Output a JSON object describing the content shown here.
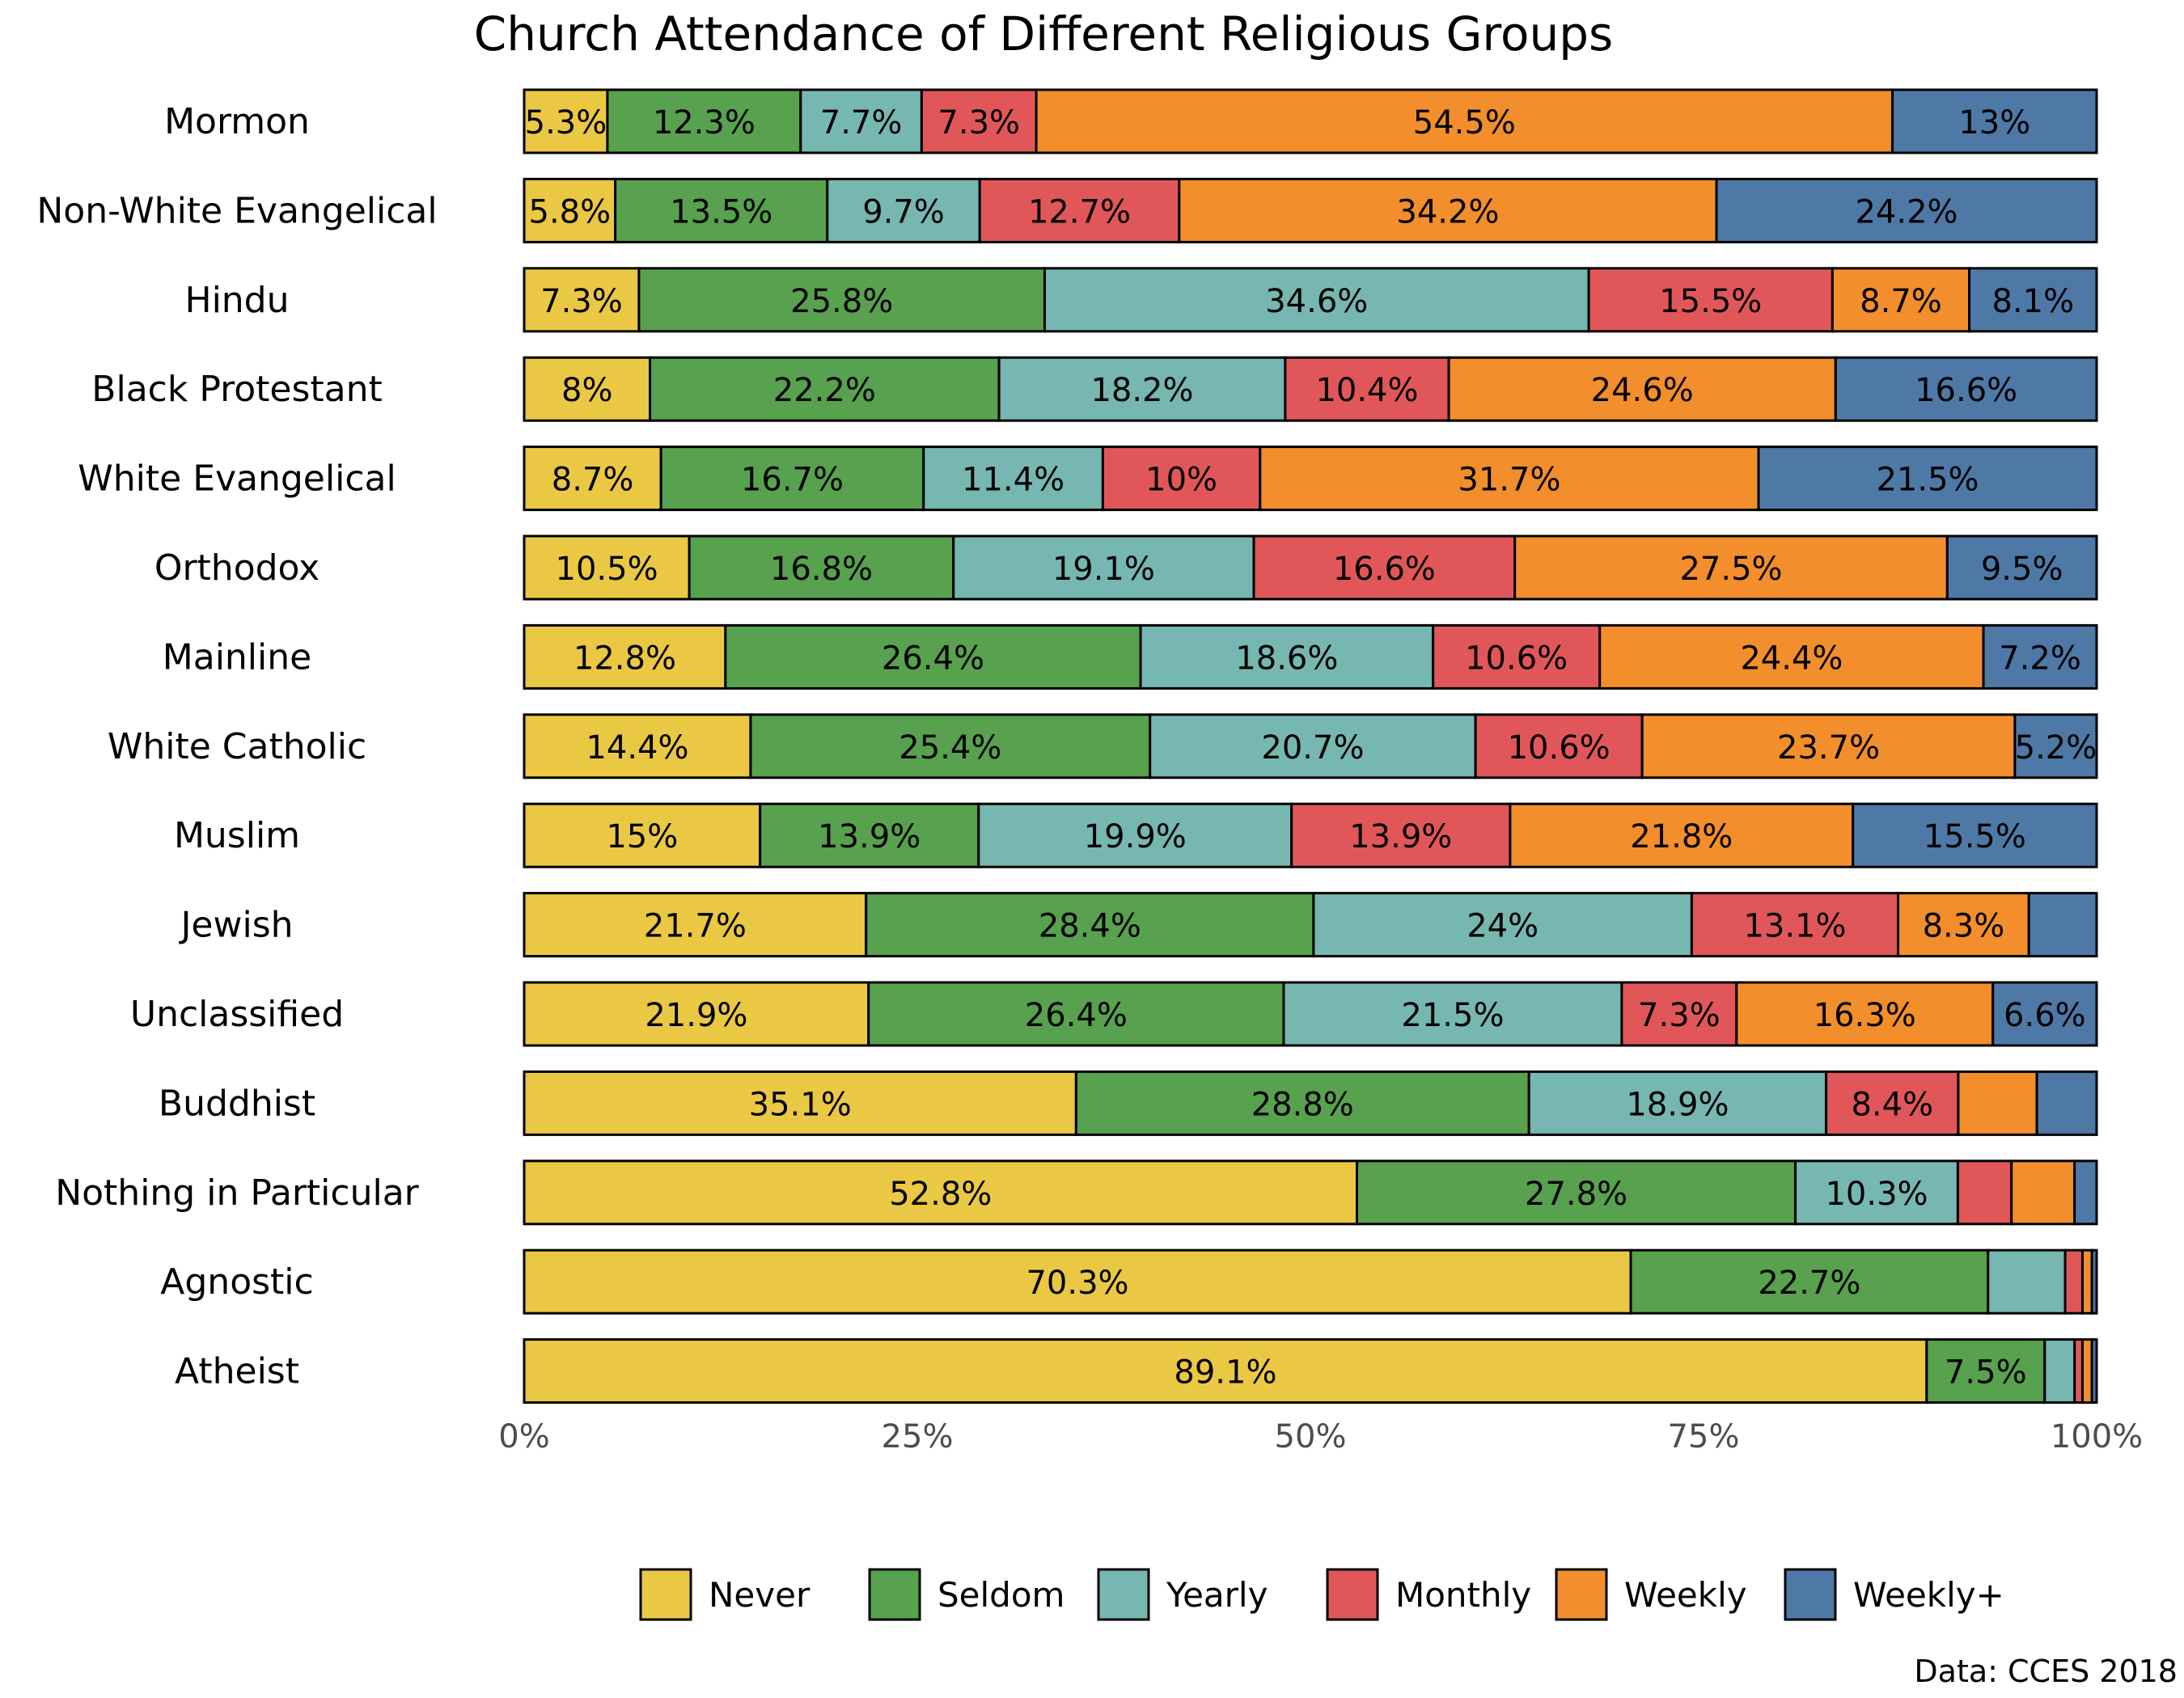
{
  "chart_data": {
    "type": "bar",
    "orientation": "horizontal",
    "stacked": true,
    "title": "Church Attendance of Different Religious Groups",
    "source": "Data: CCES 2018",
    "xlim": [
      0,
      100
    ],
    "x_ticks": [
      "0%",
      "25%",
      "50%",
      "75%",
      "100%"
    ],
    "legend_position": "bottom",
    "colors": {
      "Never": "#ebc844",
      "Seldom": "#58a14e",
      "Yearly": "#76b7b2",
      "Monthly": "#e15759",
      "Weekly": "#f28e2b",
      "Weekly+": "#4e79a7"
    },
    "categories": [
      "Mormon",
      "Non-White Evangelical",
      "Hindu",
      "Black Protestant",
      "White Evangelical",
      "Orthodox",
      "Mainline",
      "White Catholic",
      "Muslim",
      "Jewish",
      "Unclassified",
      "Buddhist",
      "Nothing in Particular",
      "Agnostic",
      "Atheist"
    ],
    "series": [
      {
        "name": "Never",
        "values": [
          5.3,
          5.8,
          7.3,
          8,
          8.7,
          10.5,
          12.8,
          14.4,
          15,
          21.7,
          21.9,
          35.1,
          52.8,
          70.3,
          89.1
        ]
      },
      {
        "name": "Seldom",
        "values": [
          12.3,
          13.5,
          25.8,
          22.2,
          16.7,
          16.8,
          26.4,
          25.4,
          13.9,
          28.4,
          26.4,
          28.8,
          27.8,
          22.7,
          7.5
        ]
      },
      {
        "name": "Yearly",
        "values": [
          7.7,
          9.7,
          34.6,
          18.2,
          11.4,
          19.1,
          18.6,
          20.7,
          19.9,
          24,
          21.5,
          18.9,
          10.3,
          4.9,
          1.9
        ]
      },
      {
        "name": "Monthly",
        "values": [
          7.3,
          12.7,
          15.5,
          10.4,
          10,
          16.6,
          10.6,
          10.6,
          13.9,
          13.1,
          7.3,
          8.4,
          3.4,
          1.1,
          0.5
        ]
      },
      {
        "name": "Weekly",
        "values": [
          54.5,
          34.2,
          8.7,
          24.6,
          31.7,
          27.5,
          24.4,
          23.7,
          21.8,
          8.3,
          16.3,
          5,
          4,
          0.6,
          0.6
        ]
      },
      {
        "name": "Weekly+",
        "values": [
          13,
          24.2,
          8.1,
          16.6,
          21.5,
          9.5,
          7.2,
          5.2,
          15.5,
          4.3,
          6.6,
          3.8,
          1.4,
          0.3,
          0.3
        ]
      }
    ],
    "labels": [
      [
        "5.3%",
        "12.3%",
        "7.7%",
        "7.3%",
        "54.5%",
        "13%"
      ],
      [
        "5.8%",
        "13.5%",
        "9.7%",
        "12.7%",
        "34.2%",
        "24.2%"
      ],
      [
        "7.3%",
        "25.8%",
        "34.6%",
        "15.5%",
        "8.7%",
        "8.1%"
      ],
      [
        "8%",
        "22.2%",
        "18.2%",
        "10.4%",
        "24.6%",
        "16.6%"
      ],
      [
        "8.7%",
        "16.7%",
        "11.4%",
        "10%",
        "31.7%",
        "21.5%"
      ],
      [
        "10.5%",
        "16.8%",
        "19.1%",
        "16.6%",
        "27.5%",
        "9.5%"
      ],
      [
        "12.8%",
        "26.4%",
        "18.6%",
        "10.6%",
        "24.4%",
        "7.2%"
      ],
      [
        "14.4%",
        "25.4%",
        "20.7%",
        "10.6%",
        "23.7%",
        "5.2%"
      ],
      [
        "15%",
        "13.9%",
        "19.9%",
        "13.9%",
        "21.8%",
        "15.5%"
      ],
      [
        "21.7%",
        "28.4%",
        "24%",
        "13.1%",
        "8.3%",
        ""
      ],
      [
        "21.9%",
        "26.4%",
        "21.5%",
        "7.3%",
        "16.3%",
        "6.6%"
      ],
      [
        "35.1%",
        "28.8%",
        "18.9%",
        "8.4%",
        "",
        ""
      ],
      [
        "52.8%",
        "27.8%",
        "10.3%",
        "",
        "",
        ""
      ],
      [
        "70.3%",
        "22.7%",
        "",
        "",
        "",
        ""
      ],
      [
        "89.1%",
        "7.5%",
        "",
        "",
        "",
        ""
      ]
    ]
  }
}
